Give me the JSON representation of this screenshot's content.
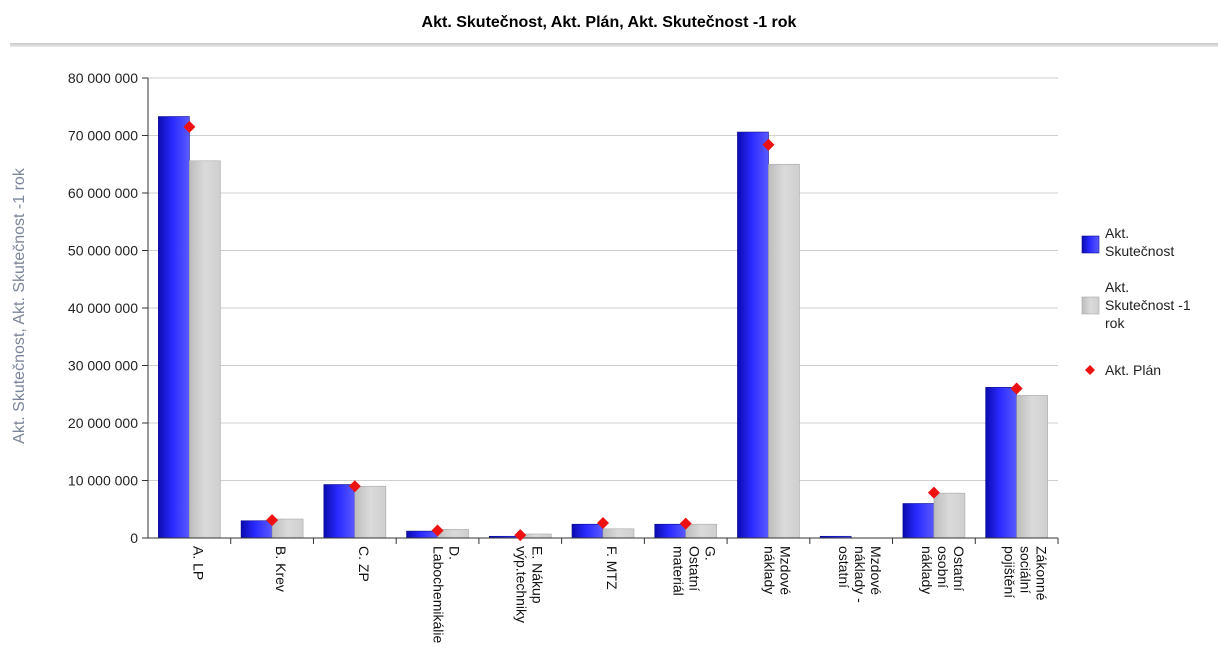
{
  "chart_data": {
    "type": "bar",
    "title": "Akt. Skutečnost, Akt. Plán, Akt. Skutečnost -1 rok",
    "ylabel": "Akt. Skutečnost, Akt. Skutečnost -1 rok",
    "xlabel": "",
    "ylim": [
      0,
      80000000
    ],
    "yticks": [
      0,
      10000000,
      20000000,
      30000000,
      40000000,
      50000000,
      60000000,
      70000000,
      80000000
    ],
    "ytick_labels": [
      "0",
      "10 000 000",
      "20 000 000",
      "30 000 000",
      "40 000 000",
      "50 000 000",
      "60 000 000",
      "70 000 000",
      "80 000 000"
    ],
    "grid": true,
    "legend_position": "right",
    "categories": [
      [
        "A. LP"
      ],
      [
        "B. Krev"
      ],
      [
        "C. ZP"
      ],
      [
        "D.",
        "Labochemikálie"
      ],
      [
        "E. Nákup",
        "výp.techniky"
      ],
      [
        "F. MTZ"
      ],
      [
        "G.",
        "Ostatní",
        "materiál"
      ],
      [
        "Mzdové",
        "náklady"
      ],
      [
        "Mzdové",
        "náklady -",
        "ostatní"
      ],
      [
        "Ostatní",
        "osobní",
        "náklady"
      ],
      [
        "Zákonné",
        "sociální",
        "pojištění"
      ]
    ],
    "series": [
      {
        "name": "Akt. Skutečnost",
        "kind": "bar",
        "color": "#1a1aee",
        "values": [
          73300000,
          3000000,
          9300000,
          1200000,
          300000,
          2400000,
          2400000,
          70600000,
          300000,
          6000000,
          26200000
        ]
      },
      {
        "name": "Akt. Skutečnost -1 rok",
        "kind": "bar",
        "color": "#d4d4d4",
        "values": [
          65600000,
          3300000,
          9000000,
          1500000,
          700000,
          1600000,
          2400000,
          65000000,
          0,
          7800000,
          24800000
        ]
      },
      {
        "name": "Akt. Plán",
        "kind": "marker",
        "color": "#ee1111",
        "values": [
          71500000,
          3100000,
          9000000,
          1300000,
          500000,
          2600000,
          2500000,
          68400000,
          0,
          7900000,
          26000000
        ]
      }
    ],
    "legend": [
      {
        "label": [
          "Akt.",
          "Skutečnost"
        ],
        "series": 0
      },
      {
        "label": [
          "Akt.",
          "Skutečnost -1",
          "rok"
        ],
        "series": 1
      },
      {
        "label": [
          "Akt. Plán"
        ],
        "series": 2
      }
    ]
  }
}
